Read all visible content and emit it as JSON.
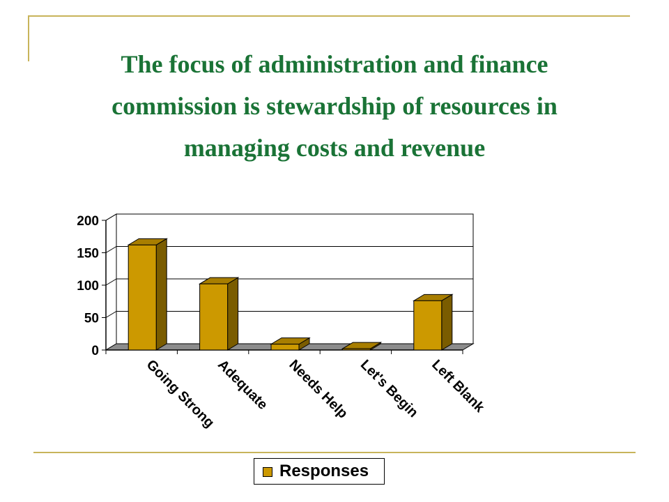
{
  "slide": {
    "title_lines": [
      "The focus of administration and finance",
      "commission is stewardship of resources in",
      "managing costs and revenue"
    ]
  },
  "colors": {
    "title": "#1a7336",
    "frame": "#c8b45a",
    "bar_front": "#cc9900",
    "bar_side": "#7a5c00",
    "bar_top": "#a87e00",
    "floor": "#8c8c8c"
  },
  "chart_data": {
    "type": "bar",
    "title": "",
    "xlabel": "",
    "ylabel": "",
    "categories": [
      "Going Strong",
      "Adequate",
      "Needs Help",
      "Let's Begin",
      "Left Blank"
    ],
    "series": [
      {
        "name": "Responses",
        "values": [
          162,
          102,
          9,
          2,
          76
        ]
      }
    ],
    "ylim": [
      0,
      200
    ],
    "yticks": [
      "0",
      "50",
      "100",
      "150",
      "200"
    ],
    "grid": true,
    "legend": "bottom",
    "style": "3d-column"
  }
}
